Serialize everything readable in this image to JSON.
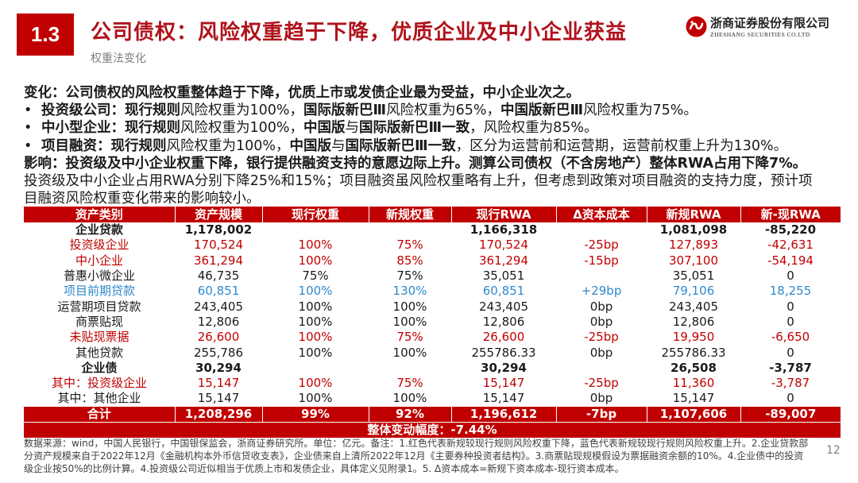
{
  "header": {
    "section_number": "1.3",
    "title": "公司债权：风险权重趋于下降，优质企业及中小企业获益",
    "subtitle": "权重法变化"
  },
  "logo": {
    "icon": "zheshang-logo-icon",
    "name_cn": "浙商证券股份有限公司",
    "name_en": "ZHESHANG SECURITIES CO.LTD"
  },
  "body": {
    "bullet": "•",
    "change": "变化：公司债权的风险权重整体趋于下降，优质上市或发债企业最为受益，中小企业次之。",
    "points": [
      [
        "投资级公司：现行规则",
        "风险权重为100%，",
        "国际版新巴Ⅲ",
        "风险权重为65%，",
        "中国版新巴Ⅲ",
        "风险权重为75%。"
      ],
      [
        "中小型企业：现行规则",
        "风险权重为100%，",
        "中国版",
        "与",
        "国际版新巴Ⅲ一致",
        "，风险权重为85%。"
      ],
      [
        "项目融资：现行规则",
        "风险权重为100%，",
        "中国版",
        "与",
        "国际版新巴Ⅲ一致",
        "，区分为运营前和运营期，运营前权重上升为130%。"
      ]
    ],
    "impact": "影响：投资级及中小企业权重下降，银行提供融资支持的意愿边际上升。测算公司债权（不含房地产）整体RWA占用下降7%。",
    "detail": [
      "投资级及中小企业占用RWA分别下降25%和15%；项目融资虽风险权重略有上升，但考虑到政策对项目融资的支持力度，预计项",
      "目融资风险权重变化带来的影响较小。"
    ]
  },
  "table": {
    "columns": [
      "资产类别",
      "资产规模",
      "现行权重",
      "新规权重",
      "现行RWA",
      "Δ资本成本",
      "新规RWA",
      "新-现RWA"
    ],
    "rows": [
      [
        "企业贷款",
        "1,178,002",
        "",
        "",
        "1,166,318",
        "",
        "1,081,098",
        "-85,220"
      ],
      [
        "投资级企业",
        "170,524",
        "100%",
        "75%",
        "170,524",
        "-25bp",
        "127,893",
        "-42,631"
      ],
      [
        "中小企业",
        "361,294",
        "100%",
        "85%",
        "361,294",
        "-15bp",
        "307,100",
        "-54,194"
      ],
      [
        "普惠小微企业",
        "46,735",
        "75%",
        "75%",
        "35,051",
        "",
        "35,051",
        "0"
      ],
      [
        "项目前期贷款",
        "60,851",
        "100%",
        "130%",
        "60,851",
        "+29bp",
        "79,106",
        "18,255"
      ],
      [
        "运营期项目贷款",
        "243,405",
        "100%",
        "100%",
        "243,405",
        "0bp",
        "243,405",
        "0"
      ],
      [
        "商票贴现",
        "12,806",
        "100%",
        "100%",
        "12,806",
        "0bp",
        "12,806",
        "0"
      ],
      [
        "未贴现票据",
        "26,600",
        "100%",
        "75%",
        "26,600",
        "-25bp",
        "19,950",
        "-6,650"
      ],
      [
        "其他贷款",
        "255,786",
        "100%",
        "100%",
        "255786.33",
        "0bp",
        "255786.33",
        "0"
      ],
      [
        "企业债",
        "30,294",
        "",
        "",
        "30,294",
        "",
        "26,508",
        "-3,787"
      ],
      [
        "其中：投资级企业",
        "15,147",
        "100%",
        "75%",
        "15,147",
        "-25bp",
        "11,360",
        "-3,787"
      ],
      [
        "其中：其他企业",
        "15,147",
        "100%",
        "100%",
        "15,147",
        "0bp",
        "15,147",
        "0"
      ]
    ],
    "total": [
      "合计",
      "1,208,296",
      "99%",
      "92%",
      "1,196,612",
      "-7bp",
      "1,107,606",
      "-89,007"
    ],
    "overall_change": "整体变动幅度：-7.44%"
  },
  "footnote": [
    "数据来源：wind，中国人民银行，中国银保监会，浙商证券研究所。单位：亿元。备注：1.红色代表新规较现行规则风险权重下降，蓝色代表新规较现行规则风险权重上升。2.企业贷款部",
    "分资产规模来自于2022年12月《金融机构本外币信贷收支表》，企业债来自上清所2022年12月《主要券种投资者结构》。3.商票贴现规模假设为票据融资余额的10%。4.企业债中的投资",
    "级企业按50%的比例计算。4.投资级公司近似相当于优质上市和发债企业，具体定义见附录1。5. Δ资本成本=新规下资本成本-现行资本成本。"
  ],
  "page_number": "12",
  "colors": {
    "brand_red": "#c00000",
    "title_red": "#b0121b",
    "decrease_red": "#c00000",
    "increase_blue": "#2f88cc"
  }
}
